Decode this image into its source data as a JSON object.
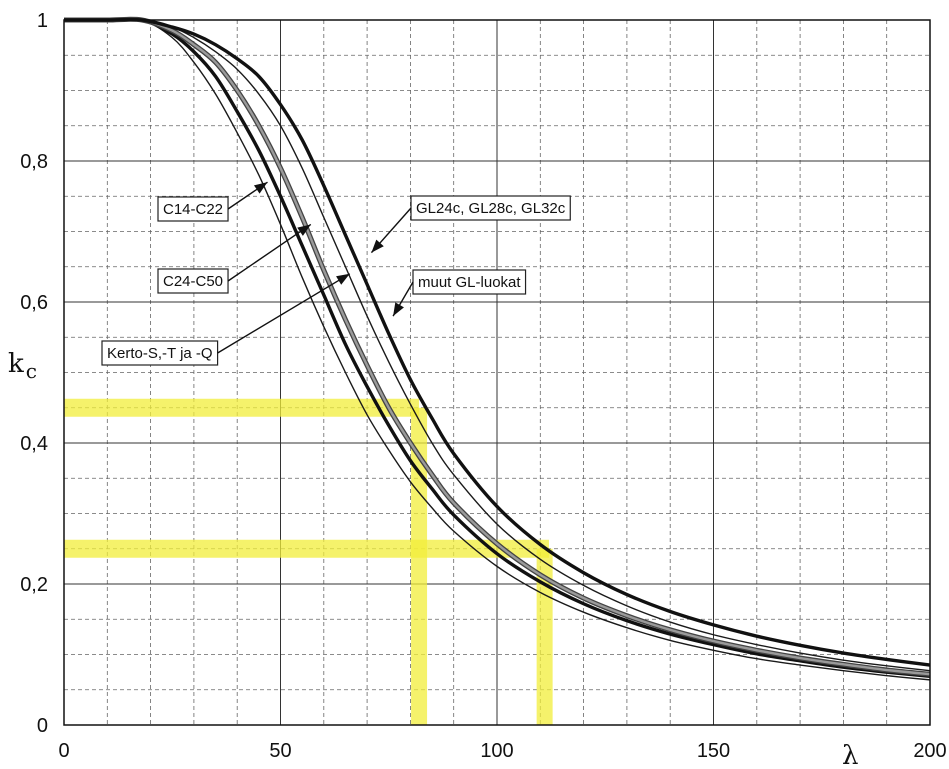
{
  "chart_data": {
    "type": "line",
    "xlabel": "λ",
    "ylabel": {
      "symbol": "k",
      "subscript": "c"
    },
    "xlim": [
      0,
      200
    ],
    "ylim": [
      0,
      1
    ],
    "x_ticks": [
      0,
      50,
      100,
      150,
      200
    ],
    "x_tick_labels": [
      "0",
      "50",
      "100",
      "150",
      "200"
    ],
    "y_ticks": [
      0,
      0.2,
      0.4,
      0.6,
      0.8,
      1
    ],
    "y_tick_labels": [
      "0",
      "0,2",
      "0,4",
      "0,6",
      "0,8",
      "1"
    ],
    "grid": true,
    "grid_minor_x_step": 10,
    "grid_minor_y_step": 0.05,
    "series": [
      {
        "name": "C14-C22",
        "line_style": "thin",
        "x": [
          0,
          10,
          18,
          25,
          30,
          35,
          40,
          45,
          50,
          55,
          60,
          65,
          70,
          75,
          80,
          85,
          90,
          100,
          110,
          120,
          130,
          140,
          150,
          160,
          170,
          180,
          190,
          200
        ],
        "y": [
          1.0,
          1.0,
          1.0,
          0.975,
          0.94,
          0.895,
          0.84,
          0.78,
          0.71,
          0.635,
          0.565,
          0.5,
          0.44,
          0.39,
          0.345,
          0.308,
          0.275,
          0.225,
          0.188,
          0.16,
          0.138,
          0.12,
          0.106,
          0.094,
          0.085,
          0.077,
          0.07,
          0.064
        ]
      },
      {
        "name": "C24-C50",
        "line_style": "bold",
        "x": [
          0,
          10,
          18,
          25,
          30,
          35,
          40,
          45,
          50,
          55,
          60,
          65,
          70,
          75,
          80,
          85,
          90,
          100,
          110,
          120,
          130,
          140,
          150,
          160,
          170,
          180,
          190,
          200
        ],
        "y": [
          1.0,
          1.0,
          1.0,
          0.98,
          0.955,
          0.92,
          0.87,
          0.815,
          0.75,
          0.68,
          0.61,
          0.54,
          0.48,
          0.425,
          0.375,
          0.335,
          0.298,
          0.243,
          0.203,
          0.172,
          0.148,
          0.129,
          0.114,
          0.101,
          0.091,
          0.082,
          0.075,
          0.069
        ]
      },
      {
        "name": "Kerto-S,-T ja -Q",
        "line_style": "gray-bold",
        "x": [
          0,
          10,
          18,
          25,
          30,
          35,
          40,
          45,
          50,
          55,
          60,
          65,
          70,
          75,
          80,
          85,
          90,
          100,
          110,
          120,
          130,
          140,
          150,
          160,
          170,
          180,
          190,
          200
        ],
        "y": [
          1.0,
          1.0,
          1.0,
          0.985,
          0.965,
          0.94,
          0.9,
          0.85,
          0.79,
          0.72,
          0.645,
          0.575,
          0.51,
          0.45,
          0.4,
          0.355,
          0.315,
          0.257,
          0.213,
          0.18,
          0.155,
          0.135,
          0.119,
          0.106,
          0.095,
          0.086,
          0.078,
          0.072
        ]
      },
      {
        "name": "muut GL-luokat",
        "line_style": "thin",
        "x": [
          0,
          10,
          18,
          25,
          30,
          35,
          40,
          45,
          50,
          55,
          60,
          65,
          70,
          75,
          80,
          85,
          90,
          100,
          110,
          120,
          130,
          140,
          150,
          160,
          170,
          180,
          190,
          200
        ],
        "y": [
          1.0,
          1.0,
          1.0,
          0.99,
          0.975,
          0.955,
          0.93,
          0.895,
          0.85,
          0.79,
          0.72,
          0.65,
          0.58,
          0.515,
          0.455,
          0.4,
          0.355,
          0.285,
          0.235,
          0.198,
          0.169,
          0.146,
          0.128,
          0.114,
          0.102,
          0.092,
          0.084,
          0.077
        ]
      },
      {
        "name": "GL24c, GL28c, GL32c",
        "line_style": "bold",
        "x": [
          0,
          10,
          18,
          25,
          30,
          35,
          40,
          45,
          50,
          55,
          60,
          65,
          70,
          75,
          80,
          85,
          90,
          100,
          110,
          120,
          130,
          140,
          150,
          160,
          170,
          180,
          190,
          200
        ],
        "y": [
          1.0,
          1.0,
          1.0,
          0.99,
          0.98,
          0.965,
          0.945,
          0.92,
          0.88,
          0.83,
          0.765,
          0.695,
          0.625,
          0.555,
          0.49,
          0.435,
          0.385,
          0.31,
          0.256,
          0.216,
          0.185,
          0.161,
          0.142,
          0.126,
          0.113,
          0.102,
          0.093,
          0.085
        ]
      }
    ],
    "annotations": [
      {
        "text": "C14-C22",
        "arrow_to": [
          47,
          0.77
        ]
      },
      {
        "text": "C24-C50",
        "arrow_to": [
          57,
          0.71
        ]
      },
      {
        "text": "Kerto-S,-T ja -Q",
        "arrow_to": [
          66,
          0.64
        ]
      },
      {
        "text": "GL24c, GL28c, GL32c",
        "arrow_to": [
          71,
          0.67
        ]
      },
      {
        "text": "muut GL-luokat",
        "arrow_to": [
          76,
          0.58
        ]
      }
    ],
    "highlights": {
      "color": "#f2ee3a",
      "horizontal": [
        {
          "y": 0.45,
          "x_from": 0,
          "x_to": 82
        },
        {
          "y": 0.25,
          "x_from": 0,
          "x_to": 112
        }
      ],
      "vertical": [
        {
          "x": 82,
          "y_from": 0,
          "y_to": 0.45
        },
        {
          "x": 111,
          "y_from": 0,
          "y_to": 0.25
        }
      ]
    }
  }
}
